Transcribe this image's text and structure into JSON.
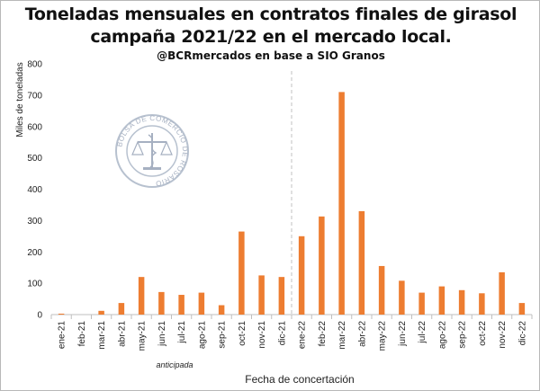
{
  "chart_data": {
    "type": "bar",
    "title_line1": "Toneladas mensuales en contratos finales de girasol",
    "title_line2": "campaña 2021/22 en el mercado local.",
    "subtitle": "@BCRmercados en base a SIO Granos",
    "ylabel": "Miles de toneladas",
    "xlabel": "Fecha de concertación",
    "annotation": "anticipada",
    "ylim": [
      0,
      800
    ],
    "yticks": [
      0,
      100,
      200,
      300,
      400,
      500,
      600,
      700,
      800
    ],
    "grid": false,
    "legend": "none",
    "bar_color": "#ed7d31",
    "divider_after": "dic-21",
    "categories": [
      "ene-21",
      "feb-21",
      "mar-21",
      "abr-21",
      "may-21",
      "jun-21",
      "jul-21",
      "ago-21",
      "sep-21",
      "oct-21",
      "nov-21",
      "dic-21",
      "ene-22",
      "feb-22",
      "mar-22",
      "abr-22",
      "may-22",
      "jun-22",
      "jul-22",
      "ago-22",
      "sep-22",
      "oct-22",
      "nov-22",
      "dic-22"
    ],
    "values": [
      3,
      0,
      12,
      37,
      120,
      72,
      63,
      70,
      30,
      265,
      125,
      120,
      250,
      313,
      710,
      330,
      155,
      108,
      70,
      90,
      78,
      68,
      135,
      37
    ]
  },
  "watermark": {
    "text_top": "BOLSA DE COMERCIO DE ROSARIO",
    "icon": "bolsa-comercio-rosario-seal-icon"
  }
}
